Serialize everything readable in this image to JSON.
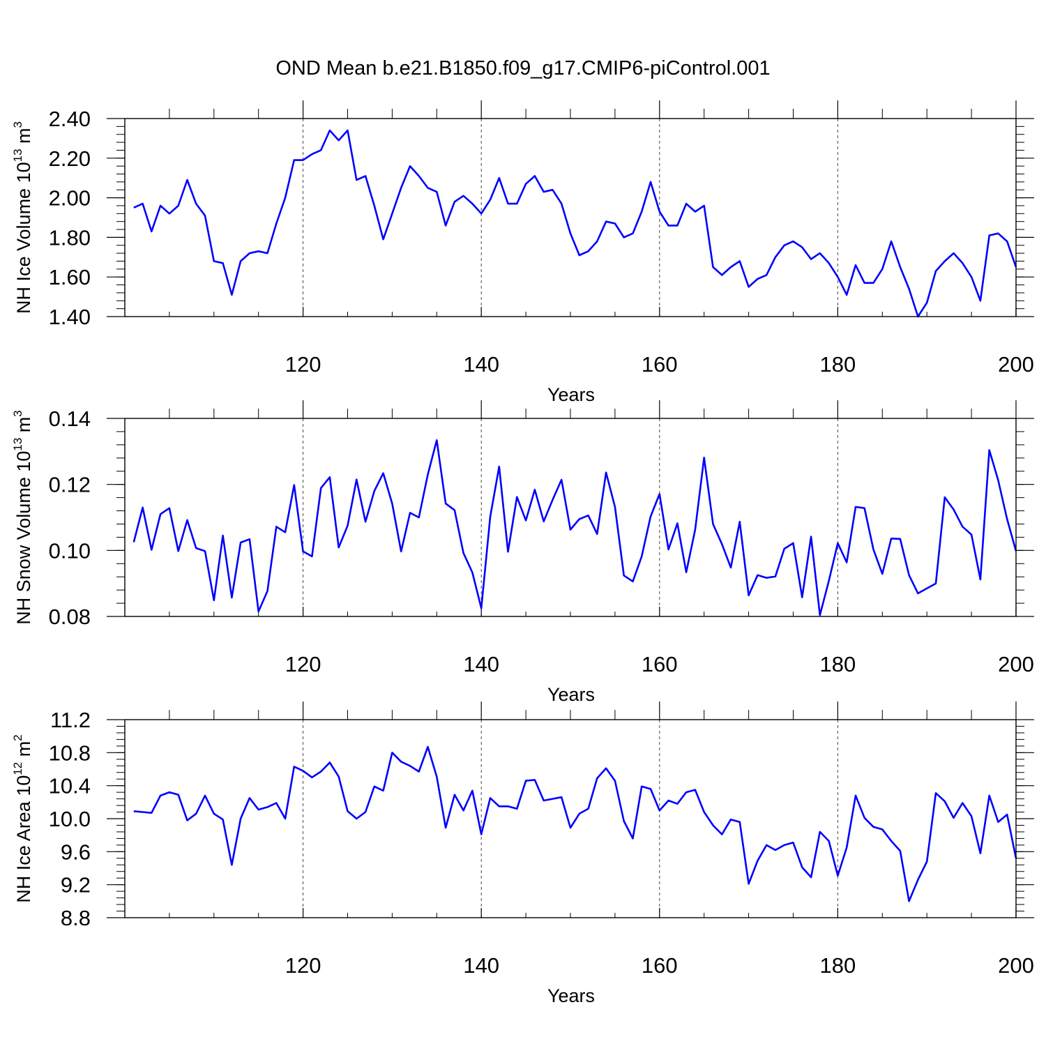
{
  "title": "OND Mean b.e21.B1850.f09_g17.CMIP6-piControl.001",
  "line_color": "#0000ff",
  "chart_data": [
    {
      "type": "line",
      "ylabel_main": "NH Ice Volume 10",
      "ylabel_exp": "13",
      "ylabel_unit": " m",
      "ylabel_unit_exp": "3",
      "xlabel": "Years",
      "xlim": [
        100,
        200
      ],
      "ylim": [
        1.4,
        2.4
      ],
      "x_ticks": [
        120,
        140,
        160,
        180,
        200
      ],
      "x_tick_labels": [
        "120",
        "140",
        "160",
        "180",
        "200"
      ],
      "y_ticks": [
        1.4,
        1.6,
        1.8,
        2.0,
        2.2,
        2.4
      ],
      "y_tick_labels": [
        "1.40",
        "1.60",
        "1.80",
        "2.00",
        "2.20",
        "2.40"
      ],
      "y_minor_step": 0.04,
      "grid": "vertical dashed at major x ticks",
      "series": [
        {
          "name": "NH Ice Volume",
          "x": [
            101,
            102,
            103,
            104,
            105,
            106,
            107,
            108,
            109,
            110,
            111,
            112,
            113,
            114,
            115,
            116,
            117,
            118,
            119,
            120,
            121,
            122,
            123,
            124,
            125,
            126,
            127,
            128,
            129,
            130,
            131,
            132,
            133,
            134,
            135,
            136,
            137,
            138,
            139,
            140,
            141,
            142,
            143,
            144,
            145,
            146,
            147,
            148,
            149,
            150,
            151,
            152,
            153,
            154,
            155,
            156,
            157,
            158,
            159,
            160,
            161,
            162,
            163,
            164,
            165,
            166,
            167,
            168,
            169,
            170,
            171,
            172,
            173,
            174,
            175,
            176,
            177,
            178,
            179,
            180,
            181,
            182,
            183,
            184,
            185,
            186,
            187,
            188,
            189,
            190,
            191,
            192,
            193,
            194,
            195,
            196,
            197,
            198,
            199,
            200
          ],
          "values": [
            1.95,
            1.97,
            1.83,
            1.96,
            1.92,
            1.96,
            2.09,
            1.97,
            1.91,
            1.68,
            1.67,
            1.51,
            1.68,
            1.72,
            1.73,
            1.72,
            1.87,
            2.0,
            2.19,
            2.19,
            2.22,
            2.24,
            2.34,
            2.29,
            2.34,
            2.09,
            2.11,
            1.96,
            1.79,
            1.92,
            2.05,
            2.16,
            2.11,
            2.05,
            2.03,
            1.86,
            1.98,
            2.01,
            1.97,
            1.92,
            1.99,
            2.1,
            1.97,
            1.97,
            2.07,
            2.11,
            2.03,
            2.04,
            1.97,
            1.82,
            1.71,
            1.73,
            1.78,
            1.88,
            1.87,
            1.8,
            1.82,
            1.93,
            2.08,
            1.93,
            1.86,
            1.86,
            1.97,
            1.93,
            1.96,
            1.65,
            1.61,
            1.65,
            1.68,
            1.55,
            1.59,
            1.61,
            1.7,
            1.76,
            1.78,
            1.75,
            1.69,
            1.72,
            1.67,
            1.6,
            1.51,
            1.66,
            1.57,
            1.57,
            1.64,
            1.78,
            1.65,
            1.54,
            1.4,
            1.47,
            1.63,
            1.68,
            1.72,
            1.67,
            1.6,
            1.48,
            1.81,
            1.82,
            1.78,
            1.65
          ]
        }
      ]
    },
    {
      "type": "line",
      "ylabel_main": "NH Snow Volume 10",
      "ylabel_exp": "13",
      "ylabel_unit": " m",
      "ylabel_unit_exp": "3",
      "xlabel": "Years",
      "xlim": [
        100,
        200
      ],
      "ylim": [
        0.08,
        0.14
      ],
      "x_ticks": [
        120,
        140,
        160,
        180,
        200
      ],
      "x_tick_labels": [
        "120",
        "140",
        "160",
        "180",
        "200"
      ],
      "y_ticks": [
        0.08,
        0.1,
        0.12,
        0.14
      ],
      "y_tick_labels": [
        "0.08",
        "0.10",
        "0.12",
        "0.14"
      ],
      "y_minor_step": 0.004,
      "grid": "vertical dashed at major x ticks",
      "series": [
        {
          "name": "NH Snow Volume",
          "x": [
            101,
            102,
            103,
            104,
            105,
            106,
            107,
            108,
            109,
            110,
            111,
            112,
            113,
            114,
            115,
            116,
            117,
            118,
            119,
            120,
            121,
            122,
            123,
            124,
            125,
            126,
            127,
            128,
            129,
            130,
            131,
            132,
            133,
            134,
            135,
            136,
            137,
            138,
            139,
            140,
            141,
            142,
            143,
            144,
            145,
            146,
            147,
            148,
            149,
            150,
            151,
            152,
            153,
            154,
            155,
            156,
            157,
            158,
            159,
            160,
            161,
            162,
            163,
            164,
            165,
            166,
            167,
            168,
            169,
            170,
            171,
            172,
            173,
            174,
            175,
            176,
            177,
            178,
            179,
            180,
            181,
            182,
            183,
            184,
            185,
            186,
            187,
            188,
            189,
            190,
            191,
            192,
            193,
            194,
            195,
            196,
            197,
            198,
            199,
            200
          ],
          "values": [
            0.1025,
            0.113,
            0.1002,
            0.111,
            0.1128,
            0.0998,
            0.1092,
            0.1007,
            0.0998,
            0.0849,
            0.1045,
            0.0857,
            0.1024,
            0.1034,
            0.0815,
            0.0877,
            0.1072,
            0.1055,
            0.1198,
            0.0997,
            0.0982,
            0.1189,
            0.1222,
            0.1009,
            0.1075,
            0.1215,
            0.1087,
            0.118,
            0.1234,
            0.1142,
            0.0997,
            0.1114,
            0.11,
            0.123,
            0.1334,
            0.1142,
            0.1122,
            0.0992,
            0.0933,
            0.0825,
            0.1102,
            0.1254,
            0.0996,
            0.1162,
            0.1091,
            0.1184,
            0.1088,
            0.1153,
            0.1214,
            0.1063,
            0.1095,
            0.1106,
            0.105,
            0.1236,
            0.1132,
            0.0924,
            0.0906,
            0.0982,
            0.1103,
            0.1171,
            0.1003,
            0.1082,
            0.0934,
            0.1063,
            0.1281,
            0.108,
            0.1019,
            0.0948,
            0.1087,
            0.0864,
            0.0925,
            0.0917,
            0.0921,
            0.1005,
            0.1022,
            0.0858,
            0.1042,
            0.0804,
            0.0908,
            0.1022,
            0.0964,
            0.1132,
            0.1128,
            0.1003,
            0.0929,
            0.1036,
            0.1035,
            0.0925,
            0.087,
            0.0885,
            0.09,
            0.1161,
            0.1124,
            0.1072,
            0.1048,
            0.0912,
            0.1304,
            0.1213,
            0.1095,
            0.0998
          ]
        }
      ]
    },
    {
      "type": "line",
      "ylabel_main": "NH Ice Area 10",
      "ylabel_exp": "12",
      "ylabel_unit": " m",
      "ylabel_unit_exp": "2",
      "xlabel": "Years",
      "xlim": [
        100,
        200
      ],
      "ylim": [
        8.8,
        11.2
      ],
      "x_ticks": [
        120,
        140,
        160,
        180,
        200
      ],
      "x_tick_labels": [
        "120",
        "140",
        "160",
        "180",
        "200"
      ],
      "y_ticks": [
        8.8,
        9.2,
        9.6,
        10.0,
        10.4,
        10.8,
        11.2
      ],
      "y_tick_labels": [
        "8.8",
        "9.2",
        "9.6",
        "10.0",
        "10.4",
        "10.8",
        "11.2"
      ],
      "y_minor_step": 0.08,
      "grid": "vertical dashed at major x ticks",
      "series": [
        {
          "name": "NH Ice Area",
          "x": [
            101,
            102,
            103,
            104,
            105,
            106,
            107,
            108,
            109,
            110,
            111,
            112,
            113,
            114,
            115,
            116,
            117,
            118,
            119,
            120,
            121,
            122,
            123,
            124,
            125,
            126,
            127,
            128,
            129,
            130,
            131,
            132,
            133,
            134,
            135,
            136,
            137,
            138,
            139,
            140,
            141,
            142,
            143,
            144,
            145,
            146,
            147,
            148,
            149,
            150,
            151,
            152,
            153,
            154,
            155,
            156,
            157,
            158,
            159,
            160,
            161,
            162,
            163,
            164,
            165,
            166,
            167,
            168,
            169,
            170,
            171,
            172,
            173,
            174,
            175,
            176,
            177,
            178,
            179,
            180,
            181,
            182,
            183,
            184,
            185,
            186,
            187,
            188,
            189,
            190,
            191,
            192,
            193,
            194,
            195,
            196,
            197,
            198,
            199,
            200
          ],
          "values": [
            10.09,
            10.08,
            10.07,
            10.28,
            10.32,
            10.29,
            9.98,
            10.06,
            10.28,
            10.06,
            9.99,
            9.44,
            10.0,
            10.25,
            10.11,
            10.14,
            10.19,
            10.0,
            10.63,
            10.58,
            10.5,
            10.57,
            10.68,
            10.51,
            10.09,
            10.0,
            10.08,
            10.39,
            10.34,
            10.8,
            10.69,
            10.64,
            10.57,
            10.87,
            10.51,
            9.89,
            10.29,
            10.1,
            10.34,
            9.81,
            10.25,
            10.15,
            10.15,
            10.12,
            10.46,
            10.47,
            10.22,
            10.24,
            10.26,
            9.89,
            10.06,
            10.12,
            10.49,
            10.61,
            10.46,
            9.97,
            9.76,
            10.39,
            10.36,
            10.1,
            10.22,
            10.18,
            10.32,
            10.35,
            10.08,
            9.92,
            9.81,
            9.99,
            9.96,
            9.21,
            9.49,
            9.68,
            9.62,
            9.68,
            9.71,
            9.41,
            9.29,
            9.84,
            9.73,
            9.31,
            9.65,
            10.28,
            10.01,
            9.9,
            9.87,
            9.73,
            9.61,
            9.0,
            9.26,
            9.48,
            10.31,
            10.21,
            10.01,
            10.19,
            10.03,
            9.58,
            10.28,
            9.96,
            10.05,
            9.52
          ]
        }
      ]
    }
  ]
}
